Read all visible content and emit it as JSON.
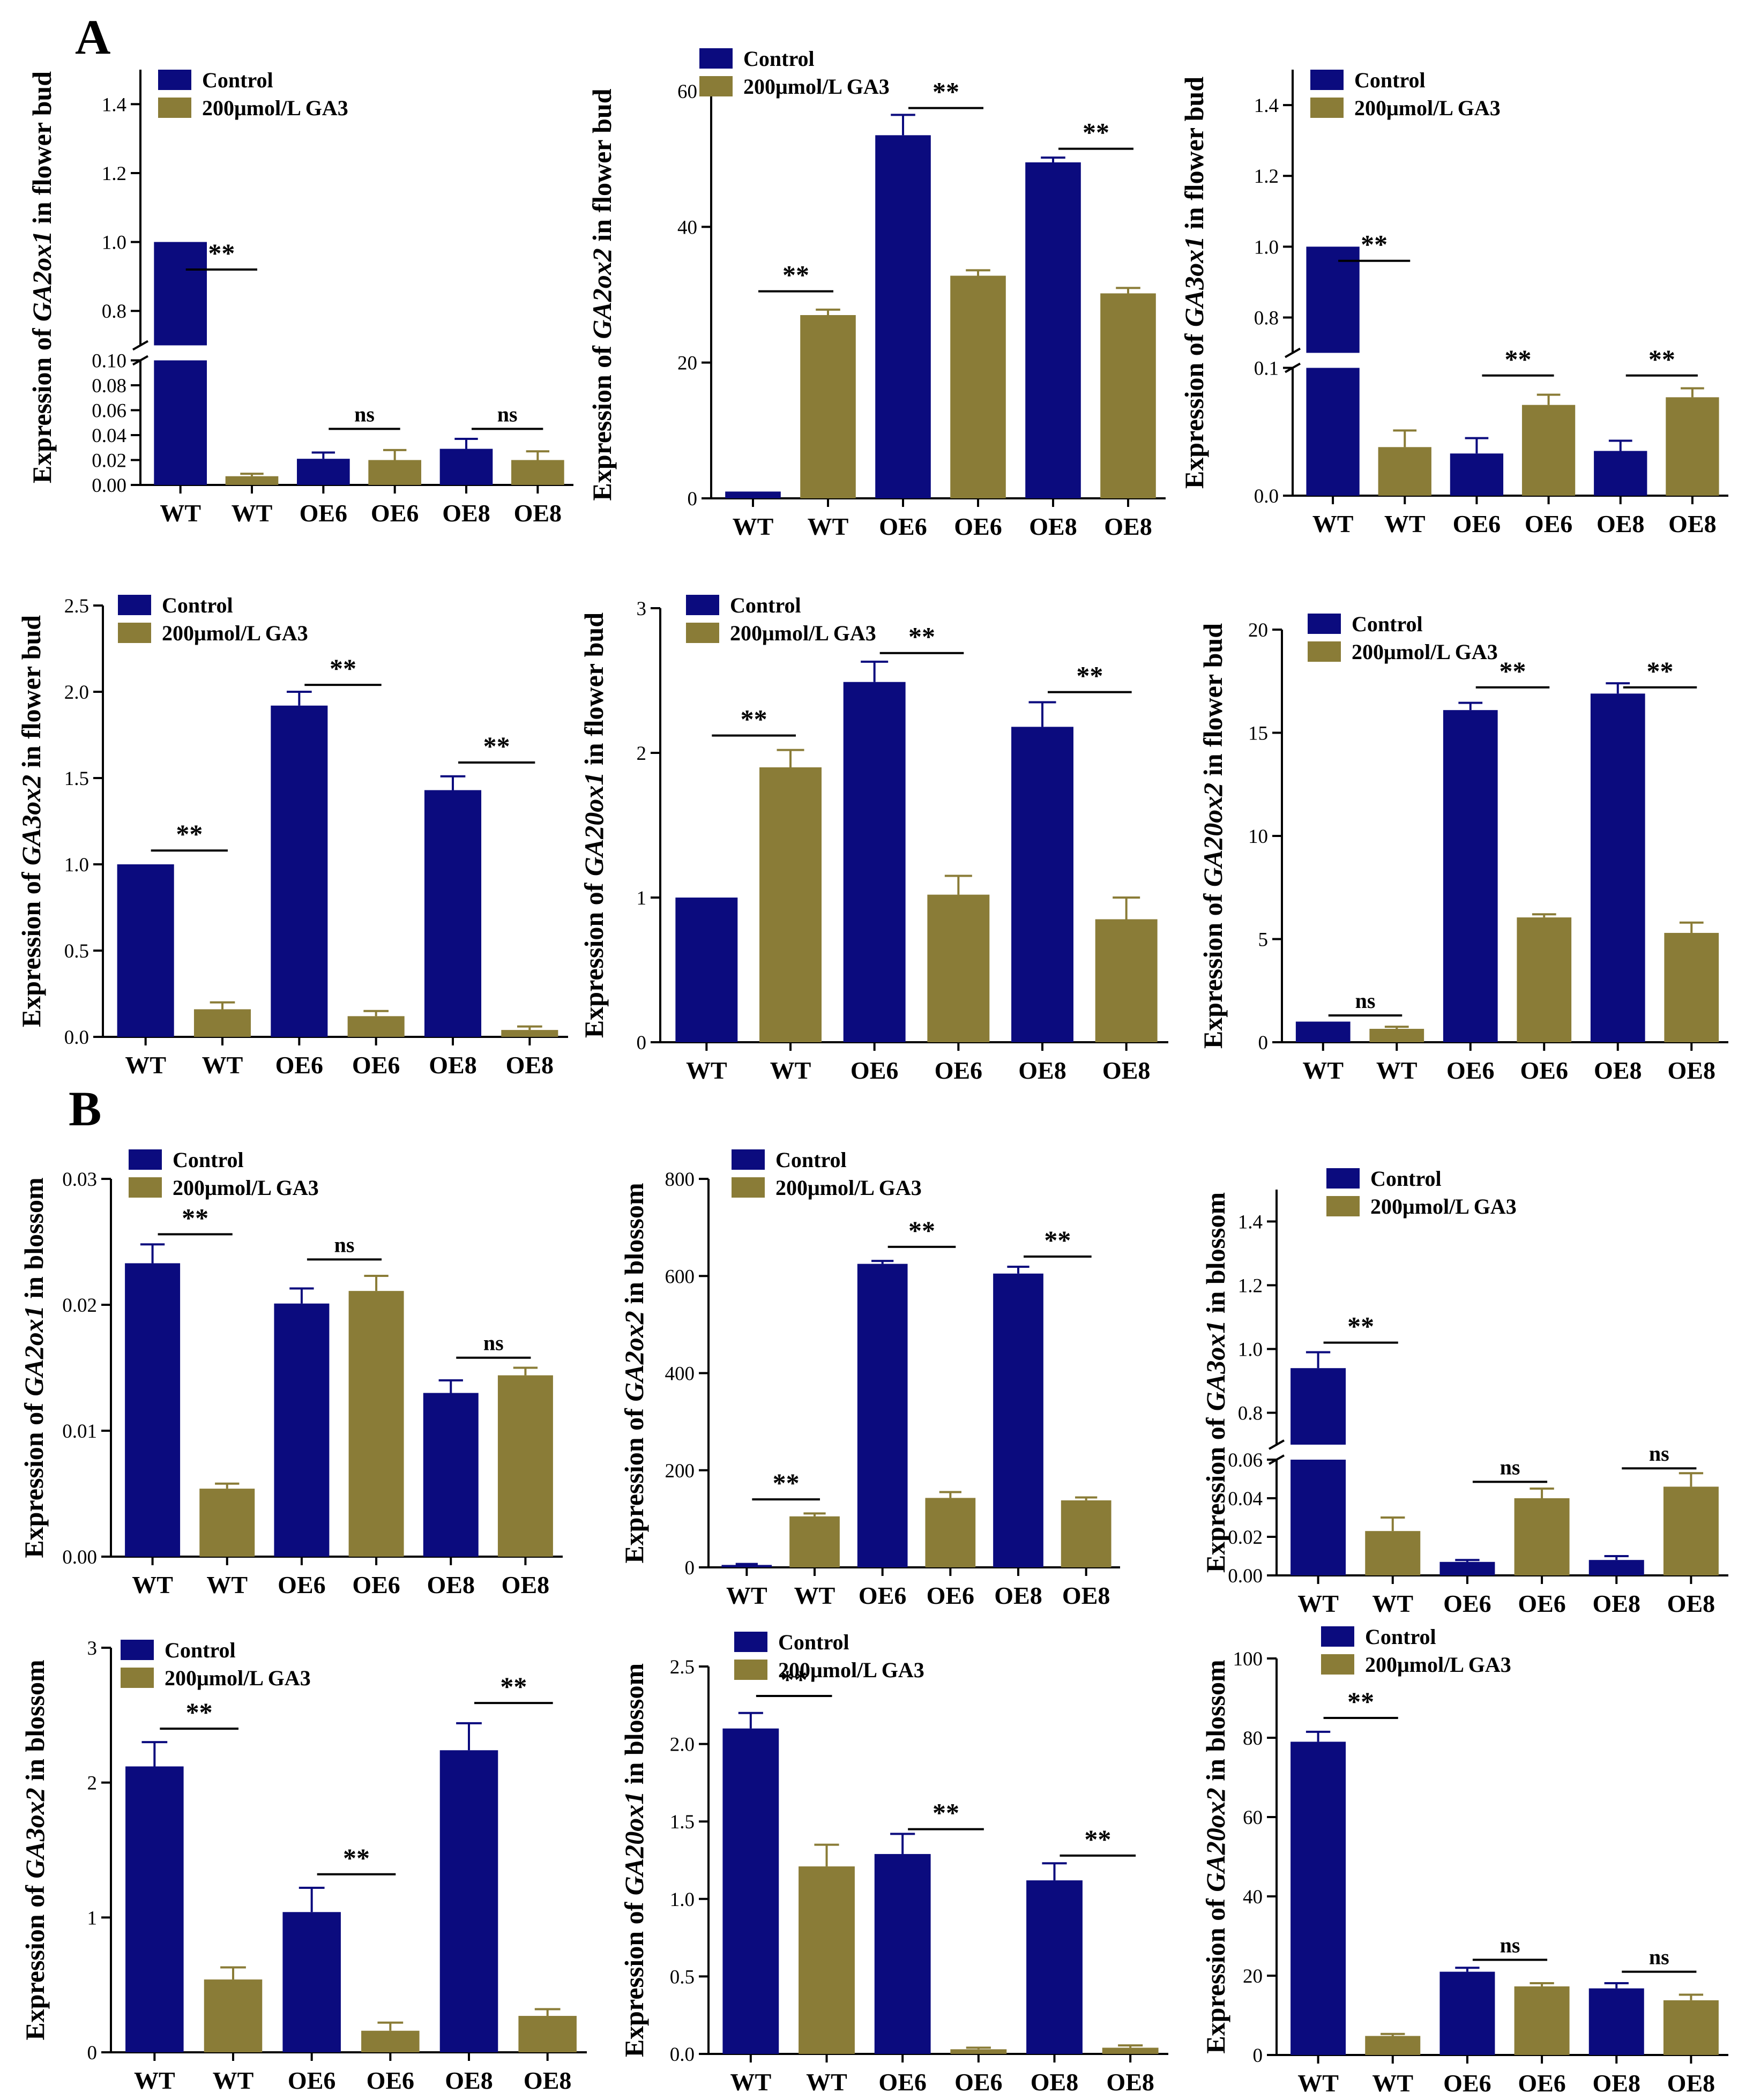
{
  "figure": {
    "panel_labels": [
      "A",
      "B"
    ],
    "colors": {
      "control": "#0b0b7e",
      "ga3": "#8a7c37"
    },
    "legend": {
      "control": "Control",
      "ga3": "200μmol/L GA3"
    }
  },
  "chart_data": [
    {
      "type": "bar",
      "panel": "A",
      "ylabel": {
        "pre": "Expression of ",
        "gene": "GA2ox1",
        "post": " in flower bud"
      },
      "categories": [
        "WT",
        "WT",
        "OE6",
        "OE6",
        "OE8",
        "OE8"
      ],
      "series_of_bar": [
        "control",
        "ga3",
        "control",
        "ga3",
        "control",
        "ga3"
      ],
      "values": [
        1.0,
        0.007,
        0.021,
        0.02,
        0.029,
        0.02
      ],
      "errors": [
        0,
        0.002,
        0.005,
        0.008,
        0.008,
        0.007
      ],
      "ylim": [
        0,
        1.5
      ],
      "axis_break": {
        "lower": [
          0,
          0.1
        ],
        "upper": [
          0.7,
          1.5
        ]
      },
      "yticks": [
        0,
        0.02,
        0.04,
        0.06,
        0.08,
        0.1,
        0.8,
        1.0,
        1.2,
        1.4
      ],
      "ytick_labels": [
        "0.00",
        "0.02",
        "0.04",
        "0.06",
        "0.08",
        "0.10",
        "0.8",
        "1.0",
        "1.2",
        "1.4"
      ],
      "significance": [
        {
          "pair": [
            0,
            1
          ],
          "label": "**",
          "y": 0.92
        },
        {
          "pair": [
            2,
            3
          ],
          "label": "ns",
          "y": 0.045
        },
        {
          "pair": [
            4,
            5
          ],
          "label": "ns",
          "y": 0.045
        }
      ]
    },
    {
      "type": "bar",
      "panel": "A",
      "ylabel": {
        "pre": "Expression of ",
        "gene": "GA2ox2",
        "post": " in flower bud"
      },
      "categories": [
        "WT",
        "WT",
        "OE6",
        "OE6",
        "OE8",
        "OE8"
      ],
      "series_of_bar": [
        "control",
        "ga3",
        "control",
        "ga3",
        "control",
        "ga3"
      ],
      "values": [
        1.0,
        27.0,
        53.5,
        32.8,
        49.5,
        30.2
      ],
      "errors": [
        0,
        0.8,
        3.0,
        0.8,
        0.7,
        0.8
      ],
      "ylim": [
        0,
        60
      ],
      "yticks": [
        0,
        20,
        40,
        60
      ],
      "ytick_labels": [
        "0",
        "20",
        "40",
        "60"
      ],
      "significance": [
        {
          "pair": [
            0,
            1
          ],
          "label": "**",
          "y": 30.5
        },
        {
          "pair": [
            2,
            3
          ],
          "label": "**",
          "y": 57.5
        },
        {
          "pair": [
            4,
            5
          ],
          "label": "**",
          "y": 51.5
        }
      ]
    },
    {
      "type": "bar",
      "panel": "A",
      "ylabel": {
        "pre": "Expression of ",
        "gene": "GA3ox1",
        "post": " in flower bud"
      },
      "categories": [
        "WT",
        "WT",
        "OE6",
        "OE6",
        "OE8",
        "OE8"
      ],
      "series_of_bar": [
        "control",
        "ga3",
        "control",
        "ga3",
        "control",
        "ga3"
      ],
      "values": [
        1.0,
        0.038,
        0.033,
        0.071,
        0.035,
        0.077
      ],
      "errors": [
        0,
        0.013,
        0.012,
        0.008,
        0.008,
        0.007
      ],
      "ylim": [
        0,
        1.5
      ],
      "axis_break": {
        "lower": [
          0,
          0.1
        ],
        "upper": [
          0.7,
          1.5
        ]
      },
      "yticks": [
        0,
        0.1,
        0.8,
        1.0,
        1.2,
        1.4
      ],
      "ytick_labels": [
        "0.0",
        "0.1",
        "0.8",
        "1.0",
        "1.2",
        "1.4"
      ],
      "significance": [
        {
          "pair": [
            0,
            1
          ],
          "label": "**",
          "y": 0.96
        },
        {
          "pair": [
            2,
            3
          ],
          "label": "**",
          "y": 0.094
        },
        {
          "pair": [
            4,
            5
          ],
          "label": "**",
          "y": 0.094
        }
      ]
    },
    {
      "type": "bar",
      "panel": "A",
      "ylabel": {
        "pre": "Expression of ",
        "gene": "GA3ox2",
        "post": " in flower bud"
      },
      "categories": [
        "WT",
        "WT",
        "OE6",
        "OE6",
        "OE8",
        "OE8"
      ],
      "series_of_bar": [
        "control",
        "ga3",
        "control",
        "ga3",
        "control",
        "ga3"
      ],
      "values": [
        1.0,
        0.16,
        1.92,
        0.12,
        1.43,
        0.04
      ],
      "errors": [
        0,
        0.04,
        0.08,
        0.03,
        0.08,
        0.02
      ],
      "ylim": [
        0,
        2.5
      ],
      "yticks": [
        0,
        0.5,
        1.0,
        1.5,
        2.0,
        2.5
      ],
      "ytick_labels": [
        "0.0",
        "0.5",
        "1.0",
        "1.5",
        "2.0",
        "2.5"
      ],
      "significance": [
        {
          "pair": [
            0,
            1
          ],
          "label": "**",
          "y": 1.08
        },
        {
          "pair": [
            2,
            3
          ],
          "label": "**",
          "y": 2.04
        },
        {
          "pair": [
            4,
            5
          ],
          "label": "**",
          "y": 1.59
        }
      ]
    },
    {
      "type": "bar",
      "panel": "A",
      "ylabel": {
        "pre": "Expression of ",
        "gene": "GA20ox1",
        "post": " in flower bud"
      },
      "categories": [
        "WT",
        "WT",
        "OE6",
        "OE6",
        "OE8",
        "OE8"
      ],
      "series_of_bar": [
        "control",
        "ga3",
        "control",
        "ga3",
        "control",
        "ga3"
      ],
      "values": [
        1.0,
        1.9,
        2.49,
        1.02,
        2.18,
        0.85
      ],
      "errors": [
        0,
        0.12,
        0.14,
        0.13,
        0.17,
        0.15
      ],
      "ylim": [
        0,
        3
      ],
      "yticks": [
        0,
        1,
        2,
        3
      ],
      "ytick_labels": [
        "0",
        "1",
        "2",
        "3"
      ],
      "significance": [
        {
          "pair": [
            0,
            1
          ],
          "label": "**",
          "y": 2.12
        },
        {
          "pair": [
            2,
            3
          ],
          "label": "**",
          "y": 2.69
        },
        {
          "pair": [
            4,
            5
          ],
          "label": "**",
          "y": 2.42
        }
      ]
    },
    {
      "type": "bar",
      "panel": "A",
      "ylabel": {
        "pre": "Expression of ",
        "gene": "GA20ox2",
        "post": " in flower bud"
      },
      "categories": [
        "WT",
        "WT",
        "OE6",
        "OE6",
        "OE8",
        "OE8"
      ],
      "series_of_bar": [
        "control",
        "ga3",
        "control",
        "ga3",
        "control",
        "ga3"
      ],
      "values": [
        1.0,
        0.65,
        16.1,
        6.05,
        16.9,
        5.3
      ],
      "errors": [
        0,
        0.1,
        0.35,
        0.15,
        0.5,
        0.5
      ],
      "ylim": [
        0,
        20
      ],
      "yticks": [
        0,
        5,
        10,
        15,
        20
      ],
      "ytick_labels": [
        "0",
        "5",
        "10",
        "15",
        "20"
      ],
      "significance": [
        {
          "pair": [
            0,
            1
          ],
          "label": "ns",
          "y": 1.3
        },
        {
          "pair": [
            2,
            3
          ],
          "label": "**",
          "y": 17.2
        },
        {
          "pair": [
            4,
            5
          ],
          "label": "**",
          "y": 17.2
        }
      ]
    },
    {
      "type": "bar",
      "panel": "B",
      "ylabel": {
        "pre": "Expression of ",
        "gene": "GA2ox1",
        "post": " in blossom"
      },
      "categories": [
        "WT",
        "WT",
        "OE6",
        "OE6",
        "OE8",
        "OE8"
      ],
      "series_of_bar": [
        "control",
        "ga3",
        "control",
        "ga3",
        "control",
        "ga3"
      ],
      "values": [
        0.0233,
        0.0054,
        0.0201,
        0.0211,
        0.013,
        0.0144
      ],
      "errors": [
        0.0015,
        0.0004,
        0.0012,
        0.0012,
        0.001,
        0.0006
      ],
      "ylim": [
        0,
        0.03
      ],
      "yticks": [
        0,
        0.01,
        0.02,
        0.03
      ],
      "ytick_labels": [
        "0.00",
        "0.01",
        "0.02",
        "0.03"
      ],
      "significance": [
        {
          "pair": [
            0,
            1
          ],
          "label": "**",
          "y": 0.0256
        },
        {
          "pair": [
            2,
            3
          ],
          "label": "ns",
          "y": 0.0236
        },
        {
          "pair": [
            4,
            5
          ],
          "label": "ns",
          "y": 0.0158
        }
      ]
    },
    {
      "type": "bar",
      "panel": "B",
      "ylabel": {
        "pre": "Expression of ",
        "gene": "GA2ox2",
        "post": " in blossom"
      },
      "categories": [
        "WT",
        "WT",
        "OE6",
        "OE6",
        "OE8",
        "OE8"
      ],
      "series_of_bar": [
        "control",
        "ga3",
        "control",
        "ga3",
        "control",
        "ga3"
      ],
      "values": [
        5,
        105,
        625,
        143,
        605,
        138
      ],
      "errors": [
        2,
        6,
        6,
        12,
        14,
        6
      ],
      "ylim": [
        0,
        800
      ],
      "yticks": [
        0,
        200,
        400,
        600,
        800
      ],
      "ytick_labels": [
        "0",
        "200",
        "400",
        "600",
        "800"
      ],
      "significance": [
        {
          "pair": [
            0,
            1
          ],
          "label": "**",
          "y": 140
        },
        {
          "pair": [
            2,
            3
          ],
          "label": "**",
          "y": 660
        },
        {
          "pair": [
            4,
            5
          ],
          "label": "**",
          "y": 640
        }
      ]
    },
    {
      "type": "bar",
      "panel": "B",
      "ylabel": {
        "pre": "Expression of ",
        "gene": "GA3ox1",
        "post": " in blossom"
      },
      "categories": [
        "WT",
        "WT",
        "OE6",
        "OE6",
        "OE8",
        "OE8"
      ],
      "series_of_bar": [
        "control",
        "ga3",
        "control",
        "ga3",
        "control",
        "ga3"
      ],
      "values": [
        0.94,
        0.023,
        0.007,
        0.04,
        0.008,
        0.046
      ],
      "errors": [
        0.05,
        0.007,
        0.001,
        0.005,
        0.002,
        0.007
      ],
      "ylim": [
        0,
        1.5
      ],
      "axis_break": {
        "lower": [
          0,
          0.06
        ],
        "upper": [
          0.7,
          1.5
        ]
      },
      "yticks": [
        0,
        0.02,
        0.04,
        0.06,
        0.8,
        1.0,
        1.2,
        1.4
      ],
      "ytick_labels": [
        "0.00",
        "0.02",
        "0.04",
        "0.06",
        "0.8",
        "1.0",
        "1.2",
        "1.4"
      ],
      "significance": [
        {
          "pair": [
            0,
            1
          ],
          "label": "**",
          "y": 1.02
        },
        {
          "pair": [
            2,
            3
          ],
          "label": "ns",
          "y": 0.0485
        },
        {
          "pair": [
            4,
            5
          ],
          "label": "ns",
          "y": 0.0555
        }
      ]
    },
    {
      "type": "bar",
      "panel": "B",
      "ylabel": {
        "pre": "Expression of ",
        "gene": "GA3ox2",
        "post": " in blossom"
      },
      "categories": [
        "WT",
        "WT",
        "OE6",
        "OE6",
        "OE8",
        "OE8"
      ],
      "series_of_bar": [
        "control",
        "ga3",
        "control",
        "ga3",
        "control",
        "ga3"
      ],
      "values": [
        2.12,
        0.54,
        1.04,
        0.16,
        2.24,
        0.27
      ],
      "errors": [
        0.18,
        0.09,
        0.18,
        0.06,
        0.2,
        0.05
      ],
      "ylim": [
        0,
        3
      ],
      "yticks": [
        0,
        1,
        2,
        3
      ],
      "ytick_labels": [
        "0",
        "1",
        "2",
        "3"
      ],
      "significance": [
        {
          "pair": [
            0,
            1
          ],
          "label": "**",
          "y": 2.4
        },
        {
          "pair": [
            2,
            3
          ],
          "label": "**",
          "y": 1.32
        },
        {
          "pair": [
            4,
            5
          ],
          "label": "**",
          "y": 2.59
        }
      ]
    },
    {
      "type": "bar",
      "panel": "B",
      "ylabel": {
        "pre": "Expression of ",
        "gene": "GA20ox1",
        "post": " in blossom"
      },
      "categories": [
        "WT",
        "WT",
        "OE6",
        "OE6",
        "OE8",
        "OE8"
      ],
      "series_of_bar": [
        "control",
        "ga3",
        "control",
        "ga3",
        "control",
        "ga3"
      ],
      "values": [
        2.1,
        1.21,
        1.29,
        0.03,
        1.12,
        0.04
      ],
      "errors": [
        0.1,
        0.14,
        0.13,
        0.01,
        0.11,
        0.015
      ],
      "ylim": [
        0,
        2.5
      ],
      "yticks": [
        0,
        0.5,
        1.0,
        1.5,
        2.0,
        2.5
      ],
      "ytick_labels": [
        "0.0",
        "0.5",
        "1.0",
        "1.5",
        "2.0",
        "2.5"
      ],
      "significance": [
        {
          "pair": [
            0,
            1
          ],
          "label": "**",
          "y": 2.31
        },
        {
          "pair": [
            2,
            3
          ],
          "label": "**",
          "y": 1.45
        },
        {
          "pair": [
            4,
            5
          ],
          "label": "**",
          "y": 1.28
        }
      ]
    },
    {
      "type": "bar",
      "panel": "B",
      "ylabel": {
        "pre": "Expression of ",
        "gene": "GA20ox2",
        "post": " in blossom"
      },
      "categories": [
        "WT",
        "WT",
        "OE6",
        "OE6",
        "OE8",
        "OE8"
      ],
      "series_of_bar": [
        "control",
        "ga3",
        "control",
        "ga3",
        "control",
        "ga3"
      ],
      "values": [
        79,
        4.8,
        21,
        17.3,
        16.8,
        13.8
      ],
      "errors": [
        2.5,
        0.5,
        1.0,
        0.8,
        1.3,
        1.4
      ],
      "ylim": [
        0,
        100
      ],
      "yticks": [
        0,
        20,
        40,
        60,
        80,
        100
      ],
      "ytick_labels": [
        "0",
        "20",
        "40",
        "60",
        "80",
        "100"
      ],
      "significance": [
        {
          "pair": [
            0,
            1
          ],
          "label": "**",
          "y": 85
        },
        {
          "pair": [
            2,
            3
          ],
          "label": "ns",
          "y": 24
        },
        {
          "pair": [
            4,
            5
          ],
          "label": "ns",
          "y": 21
        }
      ]
    }
  ]
}
